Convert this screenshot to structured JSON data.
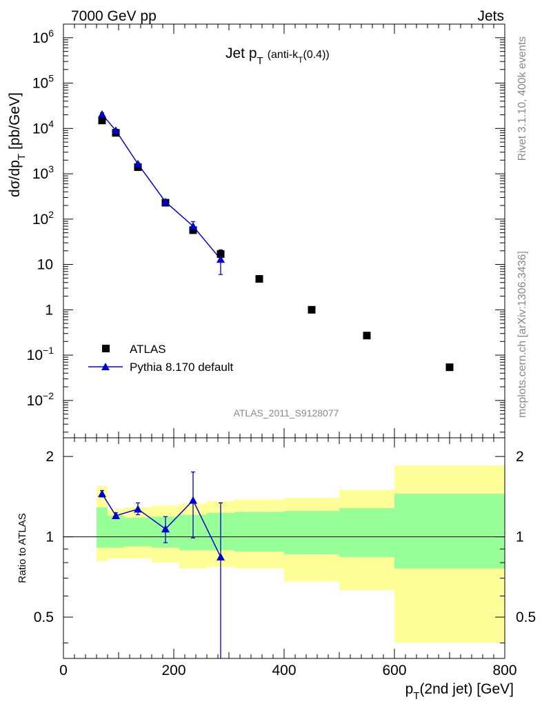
{
  "header": {
    "left": "7000 GeV pp",
    "right": "Jets"
  },
  "side_text": {
    "rivet": "Rivet 3.1.10,  400k events",
    "mcplots": "mcplots.cern.ch [arXiv:1306.3436]"
  },
  "analysis_id": "ATLAS_2011_S9128077",
  "colors": {
    "data": "#000000",
    "mc": "#0000cc",
    "band_inner": "#99ff99",
    "band_outer": "#ffff99"
  },
  "chart_data": [
    {
      "type": "scatter",
      "panel": "main",
      "title": "Jet p_T (anti-k_T(0.4))",
      "title_main": "Jet p",
      "title_sub": "T",
      "title_rest": "(anti-k",
      "title_sub2": "T",
      "title_end": "(0.4))",
      "ylabel": "dσ/dp_T [pb/GeV]",
      "ylabel_main": "dσ/dp",
      "ylabel_sub": "T",
      "ylabel_unit": "[pb/GeV]",
      "yscale": "log",
      "ylim": [
        0.0015,
        2000000
      ],
      "xlim": [
        0,
        800
      ],
      "y_tick_labels": [
        {
          "value": 0.01,
          "base": "10",
          "exp": "−2"
        },
        {
          "value": 0.1,
          "base": "10",
          "exp": "−1"
        },
        {
          "value": 1,
          "base": "1",
          "exp": ""
        },
        {
          "value": 10,
          "base": "10",
          "exp": ""
        },
        {
          "value": 100,
          "base": "10",
          "exp": "2"
        },
        {
          "value": 1000,
          "base": "10",
          "exp": "3"
        },
        {
          "value": 10000,
          "base": "10",
          "exp": "4"
        },
        {
          "value": 100000,
          "base": "10",
          "exp": "5"
        },
        {
          "value": 1000000,
          "base": "10",
          "exp": "6"
        }
      ],
      "legend": {
        "position": "lower-left",
        "entries": [
          "ATLAS",
          "Pythia 8.170 default"
        ]
      },
      "series": [
        {
          "name": "ATLAS",
          "marker": "square",
          "points": [
            {
              "x": 70,
              "y": 15000
            },
            {
              "x": 95,
              "y": 8000
            },
            {
              "x": 135,
              "y": 1400
            },
            {
              "x": 185,
              "y": 230
            },
            {
              "x": 235,
              "y": 57
            },
            {
              "x": 285,
              "y": 17
            },
            {
              "x": 355,
              "y": 4.8
            },
            {
              "x": 450,
              "y": 1.0
            },
            {
              "x": 550,
              "y": 0.27
            },
            {
              "x": 700,
              "y": 0.054
            }
          ]
        },
        {
          "name": "Pythia 8.170 default",
          "marker": "triangle",
          "points": [
            {
              "x": 70,
              "y": 20500,
              "ylo": 19000,
              "yhi": 22000
            },
            {
              "x": 95,
              "y": 9000,
              "ylo": 8500,
              "yhi": 9600
            },
            {
              "x": 135,
              "y": 1650,
              "ylo": 1550,
              "yhi": 1750
            },
            {
              "x": 185,
              "y": 240,
              "ylo": 215,
              "yhi": 265
            },
            {
              "x": 235,
              "y": 70,
              "ylo": 55,
              "yhi": 88
            },
            {
              "x": 285,
              "y": 13,
              "ylo": 6,
              "yhi": 21
            }
          ]
        }
      ]
    },
    {
      "type": "scatter",
      "panel": "ratio",
      "ylabel": "Ratio to ATLAS",
      "yscale": "log",
      "ylim": [
        0.35,
        2.35
      ],
      "xlim": [
        0,
        800
      ],
      "xlabel": "p_T(2nd jet) [GeV]",
      "xlabel_main": "p",
      "xlabel_sub": "T",
      "xlabel_rest": "(2nd jet) [GeV]",
      "x_ticks": [
        0,
        200,
        400,
        600,
        800
      ],
      "x_tick_labels": [
        "0",
        "200",
        "400",
        "600",
        "800"
      ],
      "y_ticks": [
        0.5,
        1,
        2
      ],
      "y_tick_labels": [
        "0.5",
        "1",
        "2"
      ],
      "bands": [
        {
          "xlo": 60,
          "xhi": 80,
          "in_lo": 0.91,
          "in_hi": 1.29,
          "out_lo": 0.81,
          "out_hi": 1.55
        },
        {
          "xlo": 80,
          "xhi": 110,
          "in_lo": 0.91,
          "in_hi": 1.2,
          "out_lo": 0.83,
          "out_hi": 1.27
        },
        {
          "xlo": 110,
          "xhi": 160,
          "in_lo": 0.92,
          "in_hi": 1.18,
          "out_lo": 0.83,
          "out_hi": 1.29
        },
        {
          "xlo": 160,
          "xhi": 210,
          "in_lo": 0.91,
          "in_hi": 1.19,
          "out_lo": 0.8,
          "out_hi": 1.31
        },
        {
          "xlo": 210,
          "xhi": 260,
          "in_lo": 0.89,
          "in_hi": 1.21,
          "out_lo": 0.76,
          "out_hi": 1.33
        },
        {
          "xlo": 260,
          "xhi": 310,
          "in_lo": 0.89,
          "in_hi": 1.23,
          "out_lo": 0.77,
          "out_hi": 1.36
        },
        {
          "xlo": 310,
          "xhi": 400,
          "in_lo": 0.88,
          "in_hi": 1.24,
          "out_lo": 0.76,
          "out_hi": 1.38
        },
        {
          "xlo": 400,
          "xhi": 500,
          "in_lo": 0.86,
          "in_hi": 1.25,
          "out_lo": 0.68,
          "out_hi": 1.4
        },
        {
          "xlo": 500,
          "xhi": 600,
          "in_lo": 0.84,
          "in_hi": 1.28,
          "out_lo": 0.63,
          "out_hi": 1.5
        },
        {
          "xlo": 600,
          "xhi": 800,
          "in_lo": 0.76,
          "in_hi": 1.45,
          "out_lo": 0.4,
          "out_hi": 1.85
        }
      ],
      "series": [
        {
          "name": "Pythia 8.170 default",
          "marker": "triangle",
          "points": [
            {
              "x": 70,
              "y": 1.45,
              "ylo": 1.41,
              "yhi": 1.49
            },
            {
              "x": 95,
              "y": 1.2,
              "ylo": 1.17,
              "yhi": 1.23
            },
            {
              "x": 135,
              "y": 1.27,
              "ylo": 1.21,
              "yhi": 1.34
            },
            {
              "x": 185,
              "y": 1.07,
              "ylo": 0.95,
              "yhi": 1.19
            },
            {
              "x": 235,
              "y": 1.37,
              "ylo": 0.99,
              "yhi": 1.75
            },
            {
              "x": 285,
              "y": 0.84,
              "ylo": 0.3,
              "yhi": 1.34
            }
          ]
        }
      ]
    }
  ]
}
